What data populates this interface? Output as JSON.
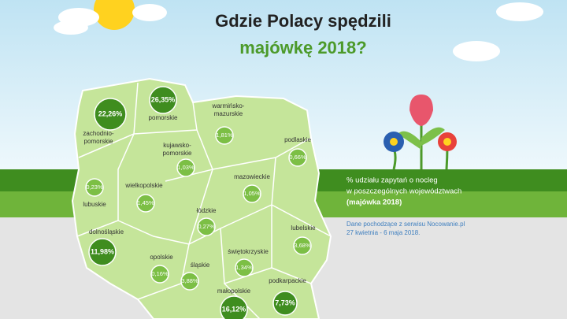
{
  "title": {
    "line1": "Gdzie Polacy spędzili",
    "line2": "majówkę 2018?"
  },
  "legend": {
    "line1": "% udziału zapytań o nocleg",
    "line2": "w poszczególnych województwach",
    "line3": "(majówka 2018)"
  },
  "source": {
    "line1": "Dane pochodzące z serwisu Nocowanie.pl",
    "line2": "27 kwietnia - 6 maja 2018."
  },
  "regions": [
    {
      "name": [
        "zachodnio-",
        "pomorskie"
      ],
      "value": "22,26%"
    },
    {
      "name": [
        "pomorskie"
      ],
      "value": "26,35%"
    },
    {
      "name": [
        "warmińsko-",
        "mazurskie"
      ],
      "value": "1,81%"
    },
    {
      "name": [
        "podlaskie"
      ],
      "value": "0,66%"
    },
    {
      "name": [
        "kujawsko-",
        "pomorskie"
      ],
      "value": "1,03%"
    },
    {
      "name": [
        "mazowieckie"
      ],
      "value": "1,05%"
    },
    {
      "name": [
        "wielkopolskie"
      ],
      "value": "1,45%"
    },
    {
      "name": [
        "lubuskie"
      ],
      "value": "0,23%"
    },
    {
      "name": [
        "łódzkie"
      ],
      "value": "0,27%"
    },
    {
      "name": [
        "lubelskie"
      ],
      "value": "3,68%"
    },
    {
      "name": [
        "dolnośląskie"
      ],
      "value": "11,98%"
    },
    {
      "name": [
        "opolskie"
      ],
      "value": "0,16%"
    },
    {
      "name": [
        "śląskie"
      ],
      "value": "3,88%"
    },
    {
      "name": [
        "świętokrzyskie"
      ],
      "value": "1,34%"
    },
    {
      "name": [
        "małopolskie"
      ],
      "value": "16,12%"
    },
    {
      "name": [
        "podkarpackie"
      ],
      "value": "7,73%"
    }
  ]
}
